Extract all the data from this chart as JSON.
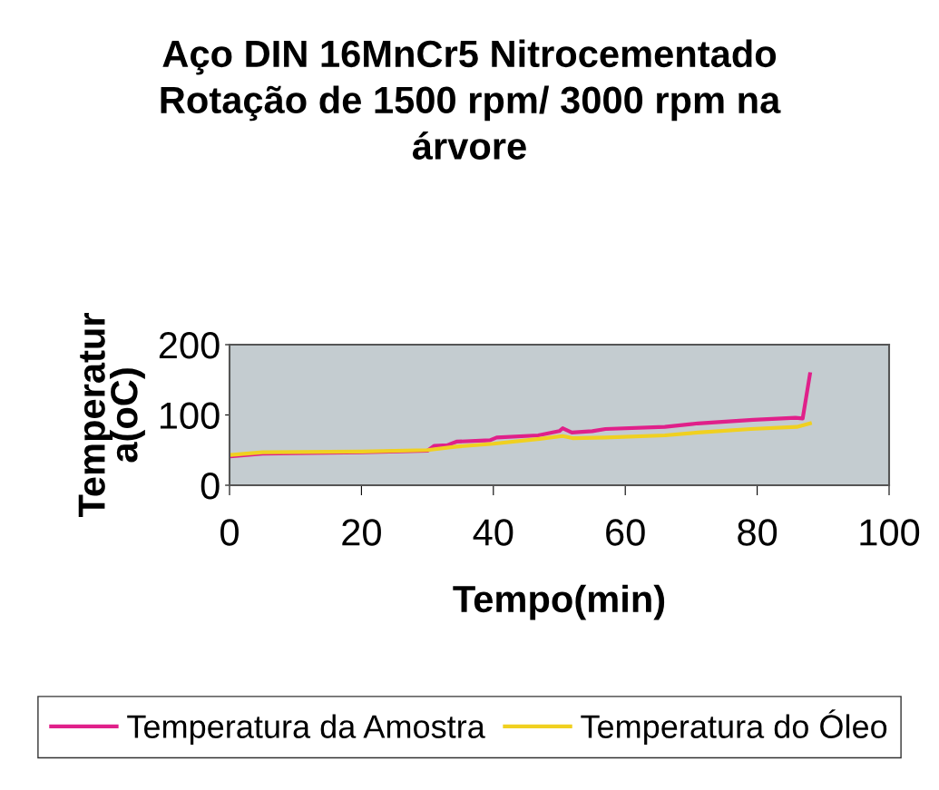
{
  "chart_data": {
    "type": "line",
    "title": "Aço DIN 16MnCr5 Nitrocementado\nRotação de 1500 rpm/ 3000 rpm na\nárvore",
    "xlabel": "Tempo(min)",
    "ylabel": "Temperatur\na(oC)",
    "xlim": [
      0,
      100
    ],
    "xticks": [
      0,
      20,
      40,
      60,
      80,
      100
    ],
    "ylim": [
      0,
      200
    ],
    "yticks": [
      0,
      100,
      200
    ],
    "grid": false,
    "legend": "bottom",
    "series": [
      {
        "name": "Temperatura da Amostra",
        "color": "#e0208a",
        "x": [
          0,
          5,
          20,
          30,
          31,
          33,
          34.4,
          39.5,
          40.5,
          46.8,
          50,
          50.5,
          51.9,
          55,
          57,
          66,
          71,
          79.4,
          85.8,
          86.9,
          88
        ],
        "values": [
          41,
          45,
          47,
          49,
          56,
          57,
          62,
          64,
          68,
          71,
          77,
          81,
          75,
          77,
          80,
          83,
          88,
          93,
          96,
          95,
          158
        ]
      },
      {
        "name": "Temperatura do Óleo",
        "color": "#f0d020",
        "x": [
          0,
          5,
          20,
          30,
          34.4,
          40,
          47,
          50.5,
          52,
          57,
          66,
          71,
          79,
          86,
          88
        ],
        "values": [
          43,
          47,
          48,
          50,
          55,
          59,
          66,
          70,
          67,
          68,
          71,
          75,
          80,
          83,
          88
        ]
      }
    ]
  }
}
